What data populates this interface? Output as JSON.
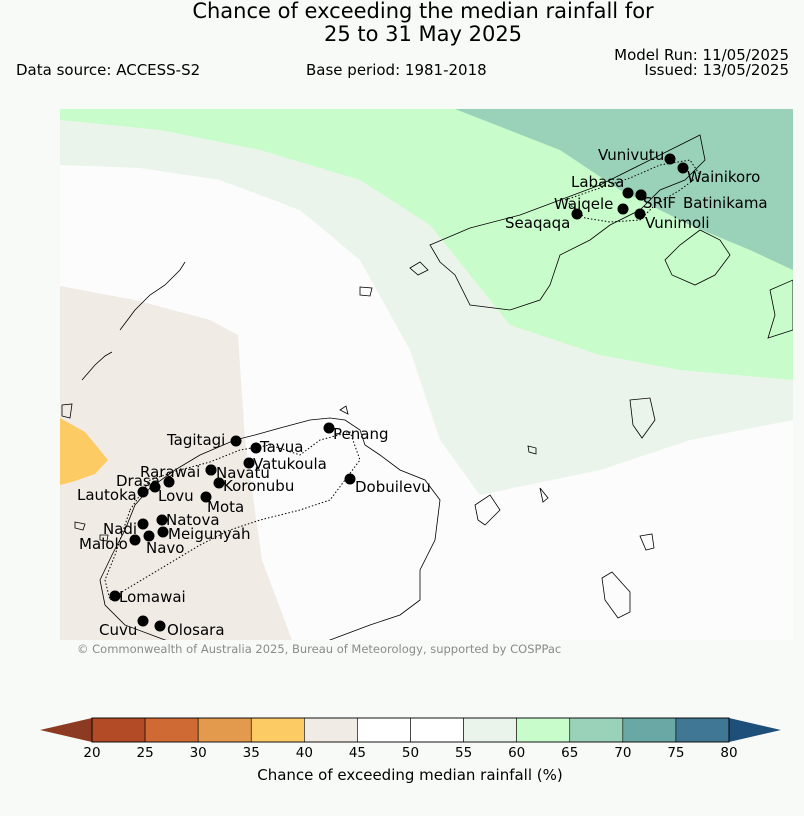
{
  "title_line1": "Chance of exceeding the median rainfall for",
  "title_line2": "25 to 31 May 2025",
  "data_source": "Data source: ACCESS-S2",
  "base_period": "Base period: 1981-2018",
  "model_run": "Model Run: 11/05/2025",
  "issued": "Issued: 13/05/2025",
  "credit": "© Commonwealth of Australia 2025, Bureau of Meteorology, supported by COSPPac",
  "colorbar": {
    "label": "Chance of exceeding median rainfall (%)",
    "ticks": [
      "20",
      "25",
      "30",
      "35",
      "40",
      "45",
      "50",
      "55",
      "60",
      "65",
      "70",
      "75",
      "80"
    ],
    "colors": [
      "#b34b26",
      "#cf6a34",
      "#e39a4c",
      "#fccb64",
      "#f1ebe6",
      "#ffffff",
      "#ffffff",
      "#ebf4ea",
      "#c9fccb",
      "#9ad2b9",
      "#6aa8a6",
      "#3f7795"
    ],
    "low_color": "#8c3a22",
    "high_color": "#1e4f7a"
  },
  "stations": [
    {
      "name": "Vunivutu"
    },
    {
      "name": "Wainikoro"
    },
    {
      "name": "Labasa"
    },
    {
      "name": "SRIF"
    },
    {
      "name": "Batinikama"
    },
    {
      "name": "Waiqele"
    },
    {
      "name": "Seaqaqa"
    },
    {
      "name": "Vunimoli"
    },
    {
      "name": "Tagitagi"
    },
    {
      "name": "Tavua"
    },
    {
      "name": "Penang"
    },
    {
      "name": "Vatukoula"
    },
    {
      "name": "Rarawai"
    },
    {
      "name": "Navatu"
    },
    {
      "name": "Drasa"
    },
    {
      "name": "Koronubu"
    },
    {
      "name": "Lautoka"
    },
    {
      "name": "Lovu"
    },
    {
      "name": "Dobuilevu"
    },
    {
      "name": "Mota"
    },
    {
      "name": "Natova"
    },
    {
      "name": "Nadi"
    },
    {
      "name": "Meigunyah"
    },
    {
      "name": "Malolo"
    },
    {
      "name": "Navo"
    },
    {
      "name": "Lomawai"
    },
    {
      "name": "Cuvu"
    },
    {
      "name": "Olosara"
    }
  ]
}
